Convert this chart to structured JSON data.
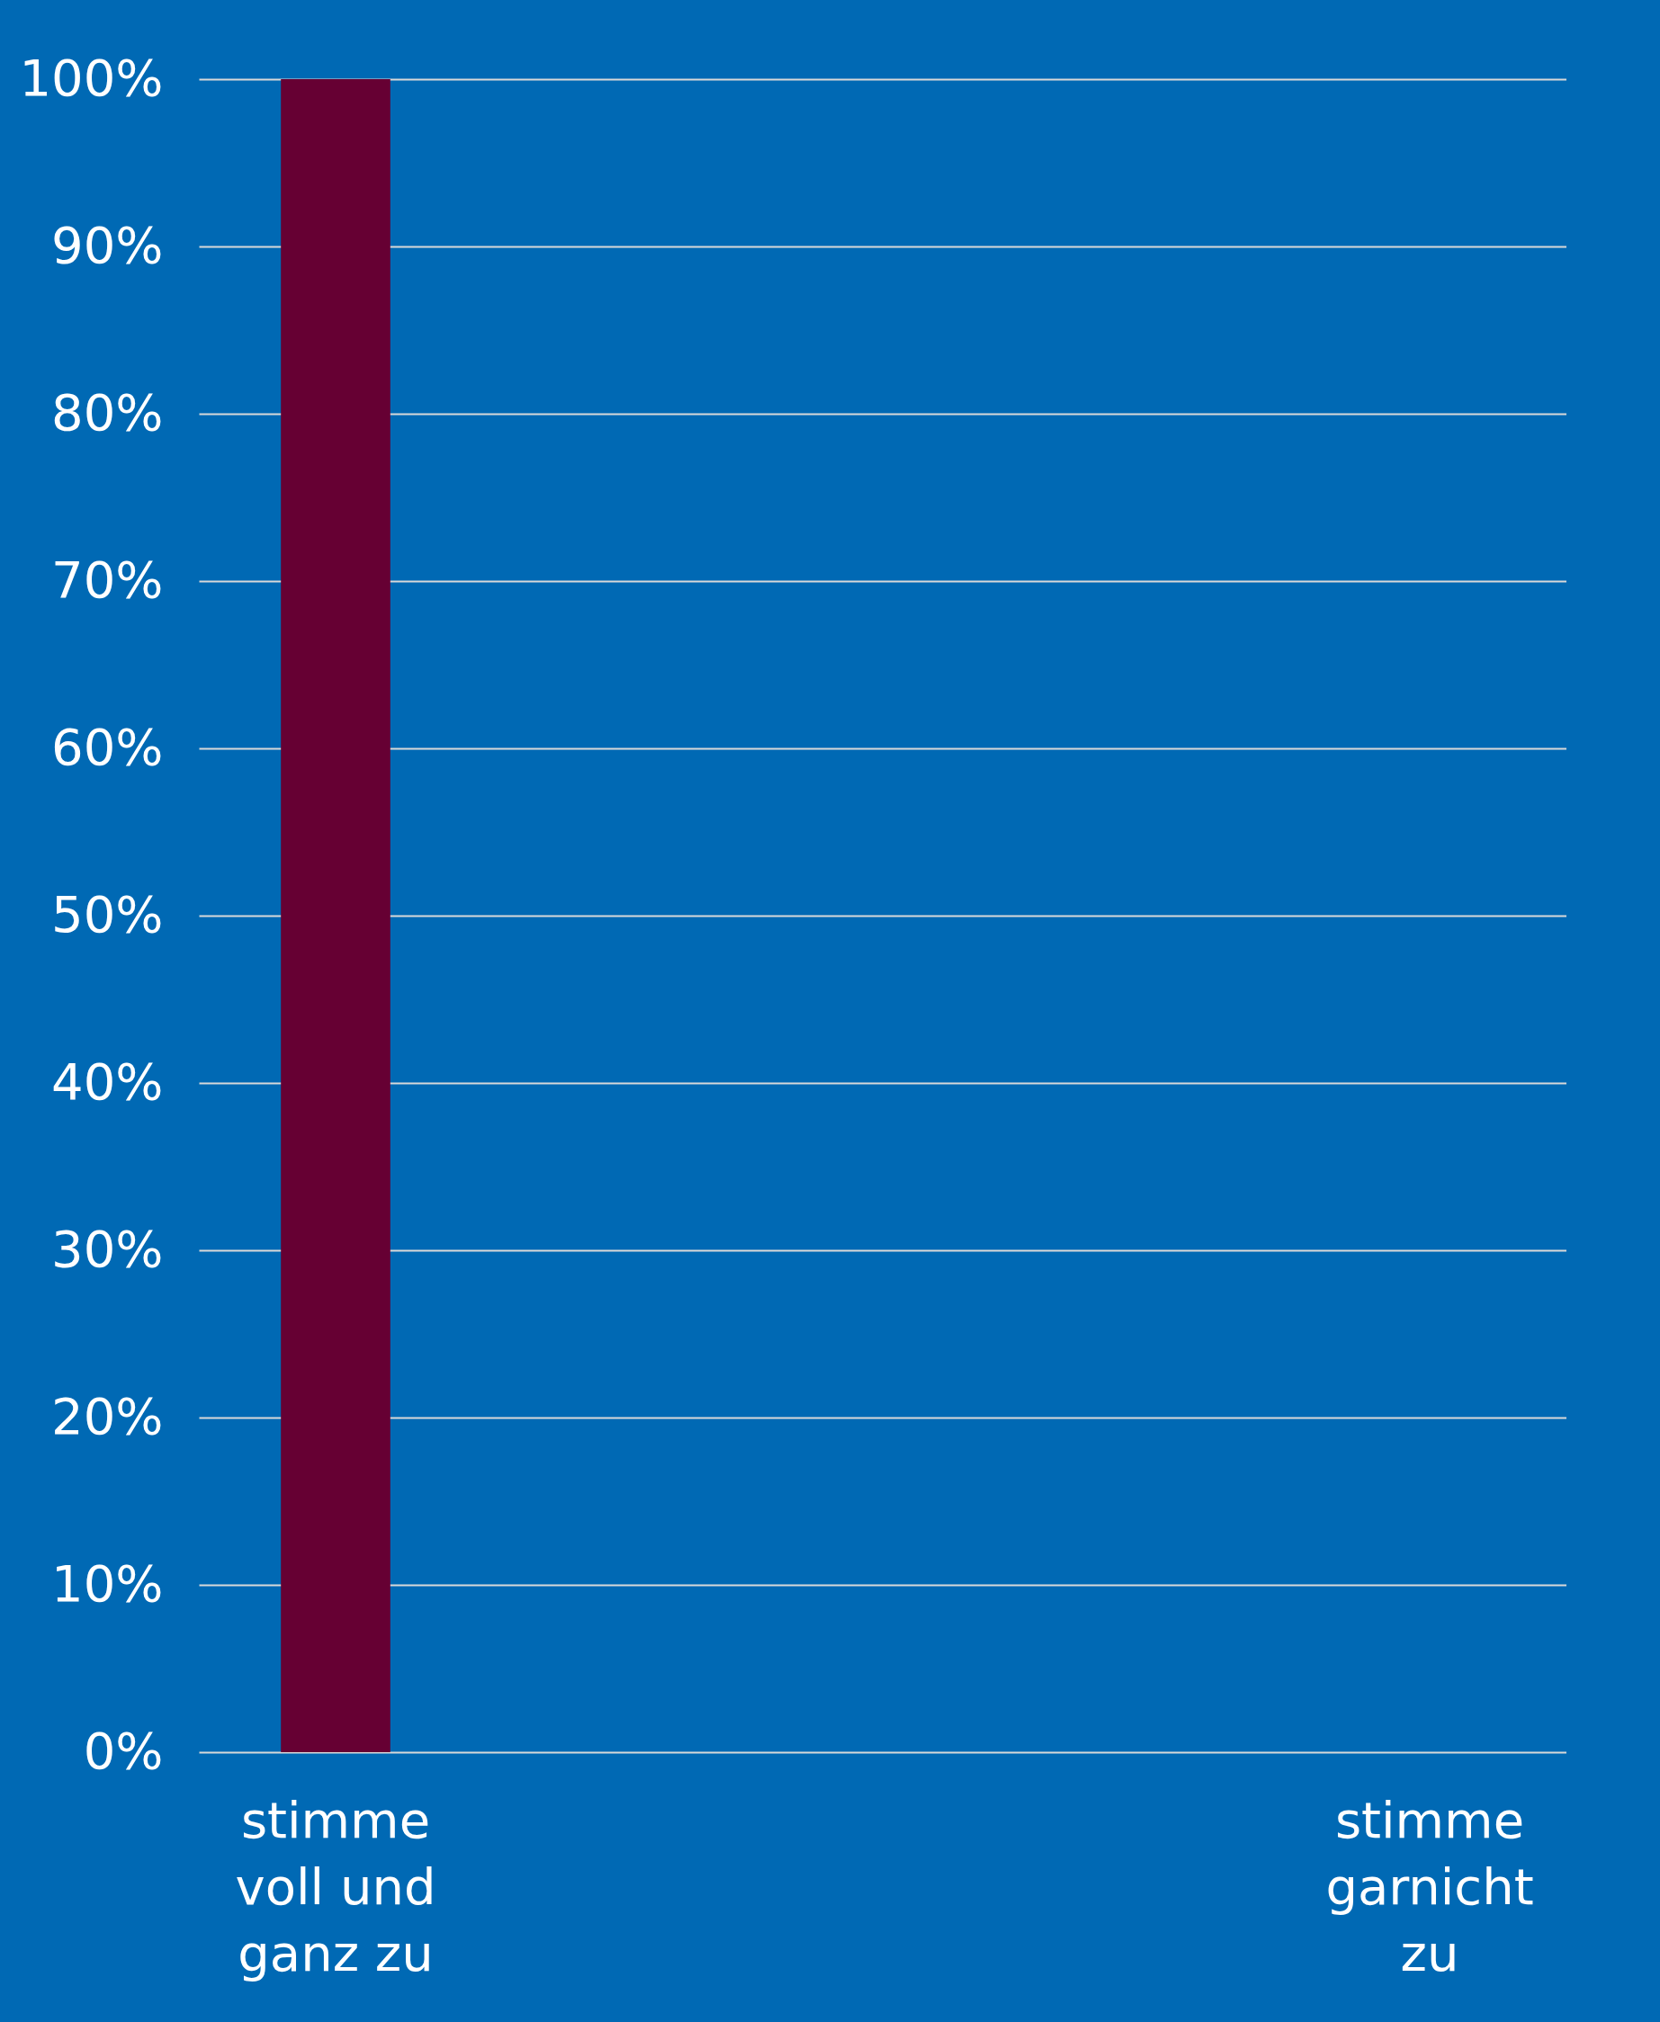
{
  "chart_data": {
    "type": "bar",
    "categories": [
      "stimme voll und ganz zu",
      null,
      null,
      null,
      "stimme garnicht zu"
    ],
    "values": [
      100,
      0,
      0,
      0,
      0
    ],
    "color": "#660033",
    "ylim": [
      0,
      100
    ],
    "yticks": [
      {
        "value": 0,
        "label": "0%"
      },
      {
        "value": 10,
        "label": "10%"
      },
      {
        "value": 20,
        "label": "20%"
      },
      {
        "value": 30,
        "label": "30%"
      },
      {
        "value": 40,
        "label": "40%"
      },
      {
        "value": 50,
        "label": "50%"
      },
      {
        "value": 60,
        "label": "60%"
      },
      {
        "value": 70,
        "label": "70%"
      },
      {
        "value": 80,
        "label": "80%"
      },
      {
        "value": 90,
        "label": "90%"
      },
      {
        "value": 100,
        "label": "100%"
      }
    ],
    "grid": "y"
  }
}
